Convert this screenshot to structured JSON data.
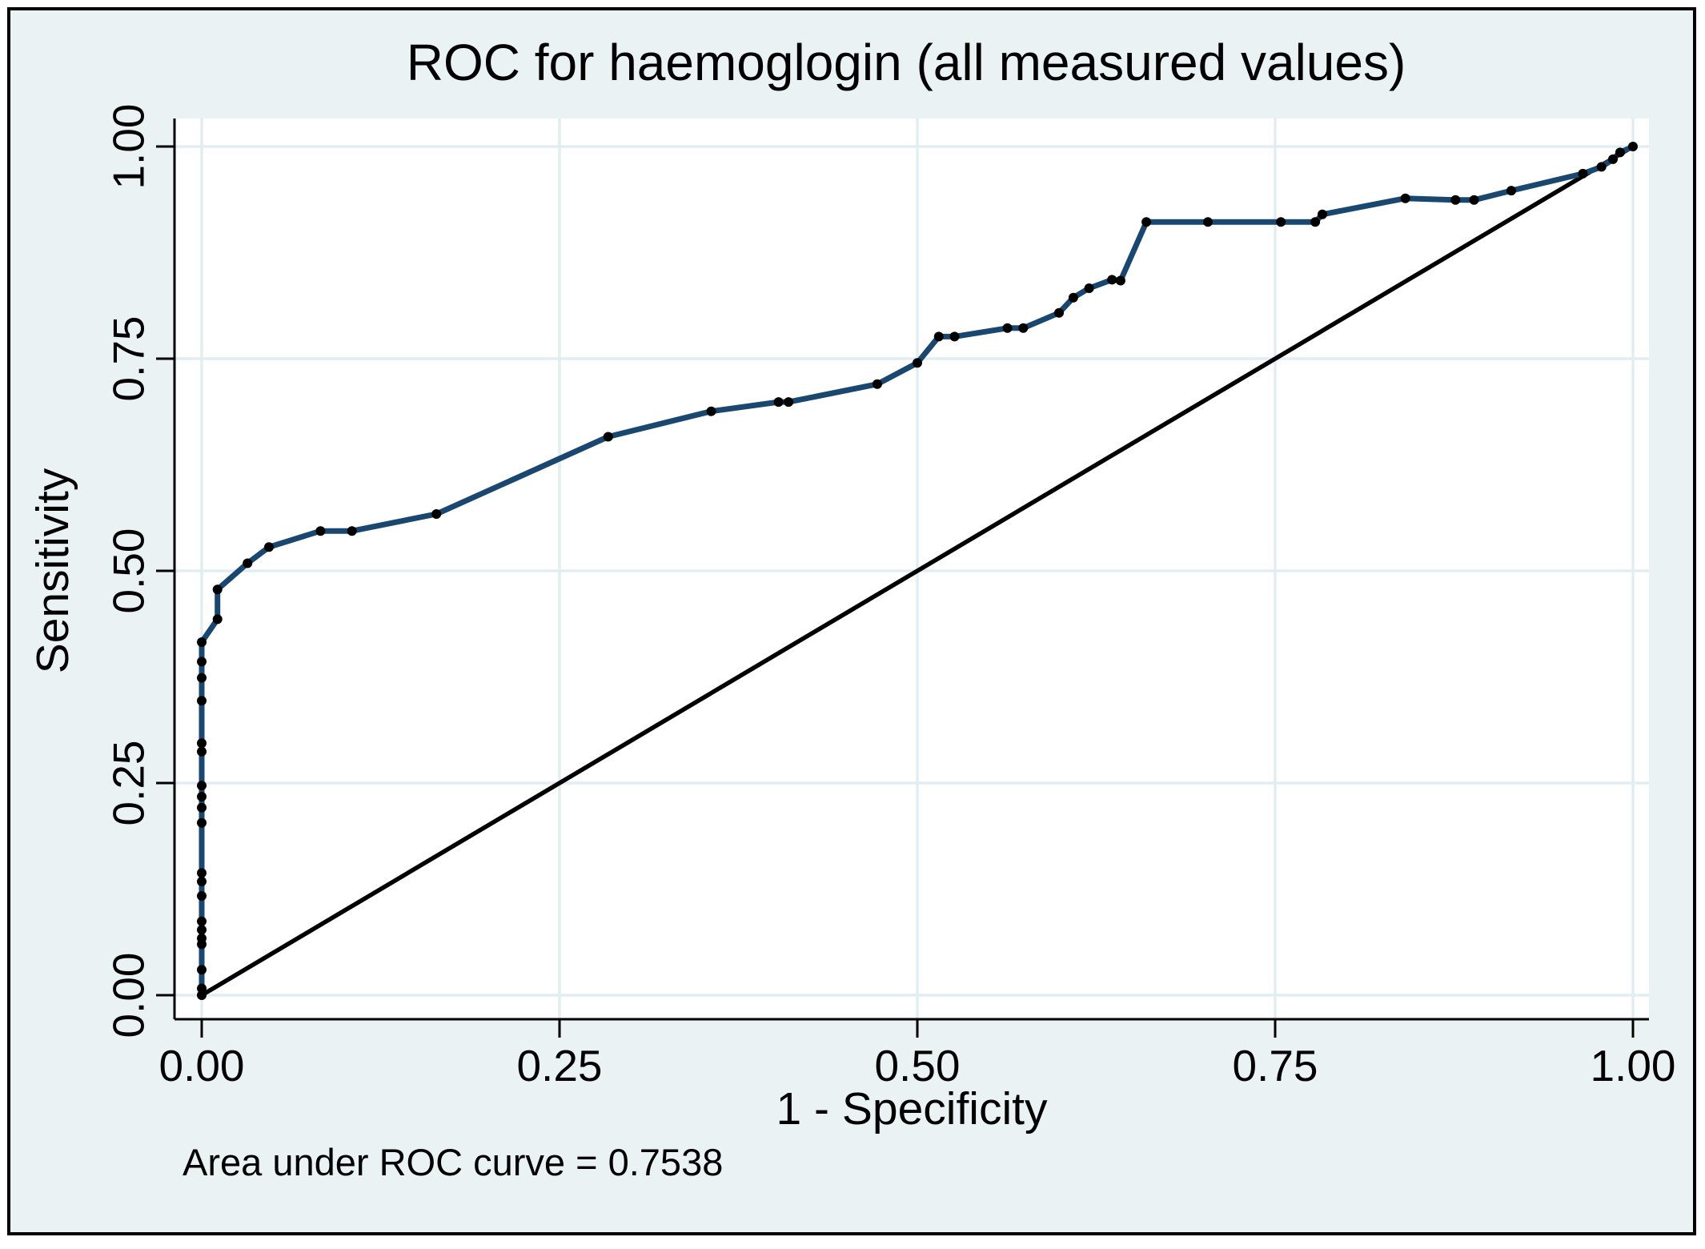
{
  "chart_data": {
    "type": "line",
    "title": "ROC for haemoglogin (all measured values)",
    "xlabel": "1 - Specificity",
    "ylabel": "Sensitivity",
    "note": "Area under ROC curve = 0.7538",
    "auc": 0.7538,
    "xlim": [
      0,
      1
    ],
    "ylim": [
      0,
      1
    ],
    "grid": true,
    "legend": "none",
    "x_ticks": {
      "values": [
        0,
        0.25,
        0.5,
        0.75,
        1
      ],
      "labels": [
        "0.00",
        "0.25",
        "0.50",
        "0.75",
        "1.00"
      ]
    },
    "y_ticks": {
      "values": [
        0,
        0.25,
        0.5,
        0.75,
        1
      ],
      "labels": [
        "0.00",
        "0.25",
        "0.50",
        "0.75",
        "1.00"
      ]
    },
    "series": [
      {
        "name": "ROC curve",
        "style": "line-with-markers",
        "color": "#1A476F",
        "marker_color": "#000000",
        "points": [
          [
            0,
            0
          ],
          [
            0,
            0.008
          ],
          [
            0,
            0.03
          ],
          [
            0,
            0.06
          ],
          [
            0,
            0.067
          ],
          [
            0,
            0.077
          ],
          [
            0,
            0.087
          ],
          [
            0,
            0.117
          ],
          [
            0,
            0.134
          ],
          [
            0,
            0.144
          ],
          [
            0,
            0.203
          ],
          [
            0,
            0.221
          ],
          [
            0,
            0.234
          ],
          [
            0,
            0.247
          ],
          [
            0,
            0.287
          ],
          [
            0,
            0.297
          ],
          [
            0,
            0.347
          ],
          [
            0,
            0.374
          ],
          [
            0,
            0.393
          ],
          [
            0,
            0.416
          ],
          [
            0.011,
            0.443
          ],
          [
            0.011,
            0.478
          ],
          [
            0.032,
            0.509
          ],
          [
            0.047,
            0.528
          ],
          [
            0.083,
            0.547
          ],
          [
            0.105,
            0.547
          ],
          [
            0.164,
            0.567
          ],
          [
            0.284,
            0.658
          ],
          [
            0.356,
            0.688
          ],
          [
            0.403,
            0.699
          ],
          [
            0.41,
            0.699
          ],
          [
            0.472,
            0.72
          ],
          [
            0.5,
            0.745
          ],
          [
            0.515,
            0.776
          ],
          [
            0.526,
            0.776
          ],
          [
            0.563,
            0.786
          ],
          [
            0.574,
            0.786
          ],
          [
            0.599,
            0.804
          ],
          [
            0.609,
            0.822
          ],
          [
            0.62,
            0.833
          ],
          [
            0.636,
            0.843
          ],
          [
            0.642,
            0.842
          ],
          [
            0.66,
            0.911
          ],
          [
            0.703,
            0.911
          ],
          [
            0.754,
            0.911
          ],
          [
            0.778,
            0.911
          ],
          [
            0.783,
            0.92
          ],
          [
            0.841,
            0.939
          ],
          [
            0.876,
            0.937
          ],
          [
            0.889,
            0.937
          ],
          [
            0.915,
            0.948
          ],
          [
            0.965,
            0.968
          ],
          [
            0.978,
            0.976
          ],
          [
            0.986,
            0.985
          ],
          [
            0.991,
            0.993
          ],
          [
            1,
            1
          ]
        ]
      },
      {
        "name": "Reference line",
        "style": "line",
        "color": "#000000",
        "points": [
          [
            0,
            0
          ],
          [
            1,
            1
          ]
        ]
      }
    ],
    "colors": {
      "figure_background": "#EAF2F3",
      "plot_background": "#FFFFFF",
      "gridline": "#E2EDF1",
      "axis_line": "#000000",
      "border": "#000000"
    }
  }
}
